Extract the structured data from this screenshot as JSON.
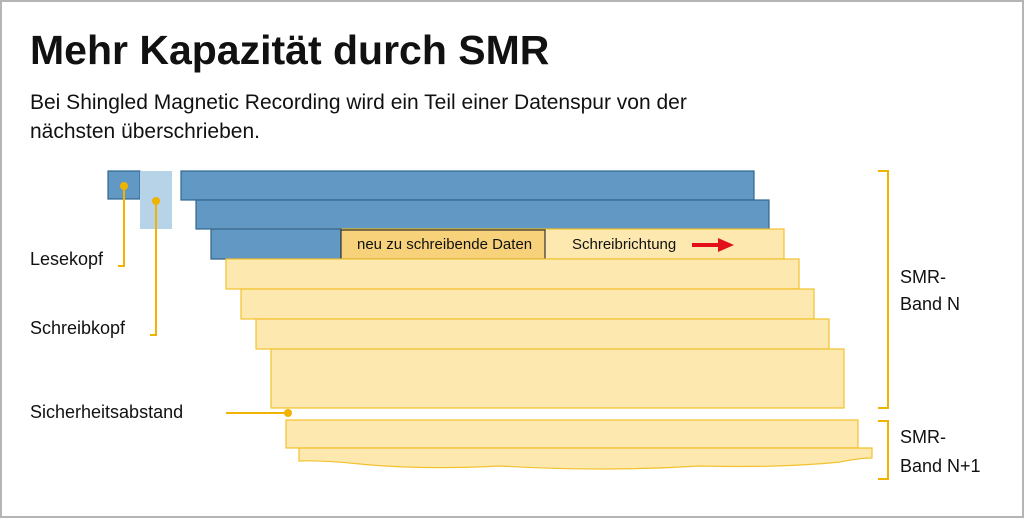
{
  "header": {
    "title": "Mehr Kapazität durch SMR",
    "subtitle_lines": [
      "Bei Shingled Magnetic Recording wird ein Teil einer Datenspur von der",
      "nächsten überschrieben."
    ]
  },
  "labels": {
    "read_head": "Lesekopf",
    "write_head": "Schreibkopf",
    "safety_gap": "Sicherheitsabstand",
    "new_data": "neu zu schreibende Daten",
    "write_direction": "Schreibrichtung",
    "band_n": [
      "SMR-",
      "Band N"
    ],
    "band_n1": [
      "SMR-",
      "Band N+1"
    ]
  }
}
